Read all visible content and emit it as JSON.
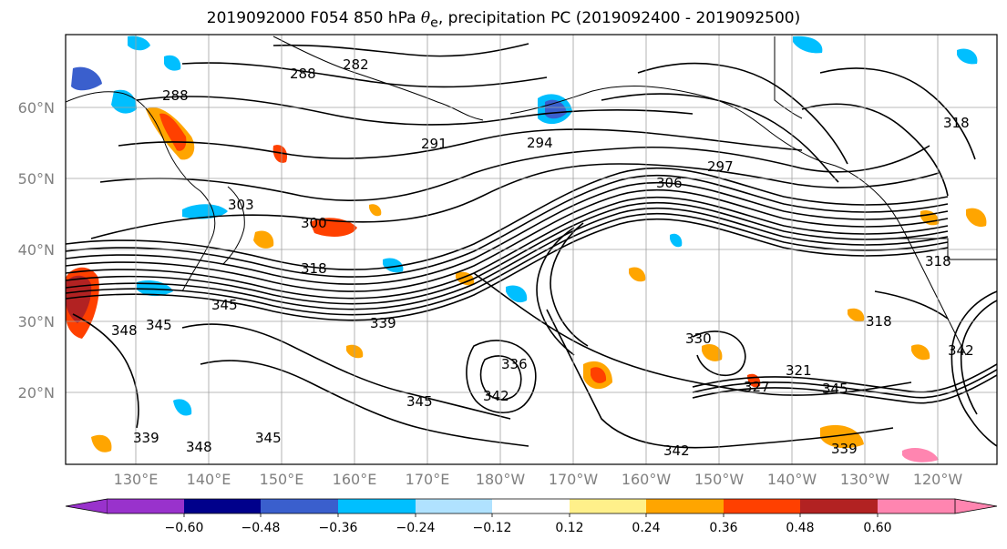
{
  "map": {
    "title_prefix": "2019092000 F054 850 hPa ",
    "title_symbol": "θ",
    "title_subscript": "e",
    "title_suffix": ", precipitation PC (2019092400 - 2019092500)",
    "lat_labels": [
      "60°N",
      "50°N",
      "40°N",
      "30°N",
      "20°N"
    ],
    "lon_labels": [
      "130°E",
      "140°E",
      "150°E",
      "160°E",
      "170°E",
      "180°W",
      "170°W",
      "160°W",
      "150°W",
      "140°W",
      "130°W",
      "120°W"
    ],
    "contour_labels": [
      {
        "text": "288"
      },
      {
        "text": "282"
      },
      {
        "text": "288"
      },
      {
        "text": "291"
      },
      {
        "text": "294"
      },
      {
        "text": "297"
      },
      {
        "text": "306"
      },
      {
        "text": "303"
      },
      {
        "text": "300"
      },
      {
        "text": "318"
      },
      {
        "text": "345"
      },
      {
        "text": "339"
      },
      {
        "text": "348"
      },
      {
        "text": "345"
      },
      {
        "text": "339"
      },
      {
        "text": "342"
      },
      {
        "text": "345"
      },
      {
        "text": "348"
      },
      {
        "text": "345"
      },
      {
        "text": "330"
      },
      {
        "text": "327"
      },
      {
        "text": "321"
      },
      {
        "text": "345"
      },
      {
        "text": "318"
      },
      {
        "text": "318"
      },
      {
        "text": "342"
      },
      {
        "text": "339"
      },
      {
        "text": "318"
      },
      {
        "text": "342"
      },
      {
        "text": "336"
      }
    ],
    "colorbar": {
      "ticks": [
        "−0.60",
        "−0.48",
        "−0.36",
        "−0.24",
        "−0.12",
        "0.12",
        "0.24",
        "0.36",
        "0.48",
        "0.60"
      ],
      "colors": [
        "#9932cc",
        "#00008b",
        "#3a5fcd",
        "#00bfff",
        "#b0e2ff",
        "#ffffff",
        "#fff08a",
        "#ffa500",
        "#ff4000",
        "#b22222",
        "#ff85b0"
      ]
    }
  }
}
